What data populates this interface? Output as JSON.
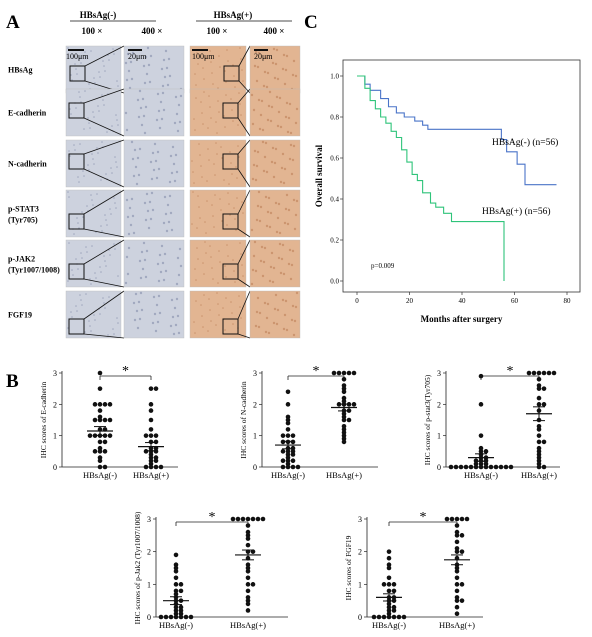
{
  "panel_labels": {
    "a": "A",
    "b": "B",
    "c": "C"
  },
  "histology": {
    "group_headers": [
      "HBsAg(-)",
      "HBsAg(+)"
    ],
    "magnifications": [
      "100 ×",
      "400 ×"
    ],
    "scale_labels": [
      "100μm",
      "20μm"
    ],
    "rows": [
      {
        "label_lines": [
          "HBsAg"
        ]
      },
      {
        "label_lines": [
          "E-cadherin"
        ]
      },
      {
        "label_lines": [
          "N-cadherin"
        ]
      },
      {
        "label_lines": [
          "p-STAT3",
          "(Tyr705)"
        ]
      },
      {
        "label_lines": [
          "p-JAK2",
          "(Tyr1007/1008)"
        ]
      },
      {
        "label_lines": [
          "FGF19"
        ]
      }
    ],
    "colors": {
      "negative_stain": "#cdd2de",
      "positive_stain": "#e2b592"
    }
  },
  "chart_data": [
    {
      "type": "line",
      "subtype": "kaplan-meier",
      "xlabel": "Months after surgery",
      "ylabel": "Overall survival",
      "xlim": [
        0,
        80
      ],
      "ylim": [
        0,
        1.0
      ],
      "x_ticks": [
        "0",
        "20",
        "40",
        "60",
        "80"
      ],
      "y_ticks": [
        "0.0",
        "0.2",
        "0.4",
        "0.6",
        "0.8",
        "1.0"
      ],
      "annotation": "p=0.009",
      "series": [
        {
          "name": "HBsAg(-) (n=56)",
          "color": "#4a74c8",
          "steps": [
            [
              0,
              1.0
            ],
            [
              3,
              0.96
            ],
            [
              5,
              0.93
            ],
            [
              9,
              0.89
            ],
            [
              12,
              0.85
            ],
            [
              15,
              0.82
            ],
            [
              18,
              0.8
            ],
            [
              22,
              0.78
            ],
            [
              25,
              0.76
            ],
            [
              27,
              0.74
            ],
            [
              55,
              0.69
            ],
            [
              57,
              0.63
            ],
            [
              61,
              0.57
            ],
            [
              64,
              0.47
            ],
            [
              76,
              0.47
            ]
          ]
        },
        {
          "name": "HBsAg(+) (n=56)",
          "color": "#2fc47a",
          "steps": [
            [
              0,
              1.0
            ],
            [
              3,
              0.94
            ],
            [
              5,
              0.88
            ],
            [
              7,
              0.84
            ],
            [
              9,
              0.8
            ],
            [
              11,
              0.77
            ],
            [
              13,
              0.73
            ],
            [
              15,
              0.7
            ],
            [
              17,
              0.64
            ],
            [
              19,
              0.58
            ],
            [
              21,
              0.52
            ],
            [
              23,
              0.49
            ],
            [
              25,
              0.43
            ],
            [
              28,
              0.38
            ],
            [
              30,
              0.36
            ],
            [
              33,
              0.33
            ],
            [
              36,
              0.29
            ],
            [
              55,
              0.29
            ],
            [
              56,
              0.0
            ]
          ]
        }
      ]
    },
    {
      "type": "scatter",
      "ylabel": "IHC scores of E-cadherin",
      "categories": [
        "HBsAg(-)",
        "HBsAg(+)"
      ],
      "ylim": [
        0,
        3
      ],
      "y_ticks": [
        "0",
        "1",
        "2",
        "3"
      ],
      "significance": "*",
      "series": [
        {
          "name": "HBsAg(-)",
          "mean": 1.15,
          "sem": 0.14,
          "values": [
            3.0,
            2.5,
            2.0,
            2.0,
            2.0,
            2.0,
            1.8,
            1.6,
            1.5,
            1.5,
            1.5,
            1.5,
            1.2,
            1.2,
            1.0,
            1.0,
            1.0,
            1.0,
            1.0,
            0.8,
            0.8,
            0.6,
            0.5,
            0.5,
            0.5,
            0.3,
            0.2,
            0.0,
            0.0
          ]
        },
        {
          "name": "HBsAg(+)",
          "mean": 0.65,
          "sem": 0.13,
          "values": [
            2.5,
            2.5,
            2.0,
            1.8,
            1.5,
            1.2,
            1.0,
            1.0,
            1.0,
            0.8,
            0.8,
            0.6,
            0.6,
            0.5,
            0.5,
            0.5,
            0.4,
            0.3,
            0.3,
            0.2,
            0.2,
            0.1,
            0.0,
            0.0,
            0.0,
            0.0
          ]
        }
      ]
    },
    {
      "type": "scatter",
      "ylabel": "IHC scores of N-cadherin",
      "categories": [
        "HBsAg(-)",
        "HBsAg(+)"
      ],
      "ylim": [
        0,
        3
      ],
      "y_ticks": [
        "0",
        "1",
        "2",
        "3"
      ],
      "significance": "*",
      "series": [
        {
          "name": "HBsAg(-)",
          "mean": 0.7,
          "sem": 0.12,
          "values": [
            2.4,
            2.0,
            1.6,
            1.5,
            1.4,
            1.2,
            1.0,
            1.0,
            1.0,
            0.8,
            0.8,
            0.8,
            0.6,
            0.6,
            0.5,
            0.5,
            0.5,
            0.4,
            0.4,
            0.3,
            0.2,
            0.2,
            0.2,
            0.1,
            0.0,
            0.0,
            0.0,
            0.0
          ]
        },
        {
          "name": "HBsAg(+)",
          "mean": 1.9,
          "sem": 0.11,
          "values": [
            3.0,
            3.0,
            3.0,
            3.0,
            3.0,
            2.8,
            2.6,
            2.5,
            2.4,
            2.2,
            2.1,
            2.0,
            2.0,
            2.0,
            2.0,
            1.8,
            1.8,
            1.7,
            1.6,
            1.5,
            1.5,
            1.3,
            1.2,
            1.1,
            1.0,
            0.9,
            0.8
          ]
        }
      ]
    },
    {
      "type": "scatter",
      "ylabel": "IHC scores of p-stat3(Tyr705)",
      "categories": [
        "HBsAg(-)",
        "HBsAg(+)"
      ],
      "ylim": [
        0,
        3
      ],
      "y_ticks": [
        "0",
        "1",
        "2",
        "3"
      ],
      "significance": "*",
      "series": [
        {
          "name": "HBsAg(-)",
          "mean": 0.3,
          "sem": 0.12,
          "values": [
            2.9,
            2.0,
            1.0,
            0.6,
            0.5,
            0.5,
            0.4,
            0.3,
            0.3,
            0.2,
            0.2,
            0.2,
            0.1,
            0.1,
            0.1,
            0.0,
            0.0,
            0.0,
            0.0,
            0.0,
            0.0,
            0.0,
            0.0,
            0.0,
            0.0,
            0.0,
            0.0,
            0.0
          ]
        },
        {
          "name": "HBsAg(+)",
          "mean": 1.7,
          "sem": 0.22,
          "values": [
            3.0,
            3.0,
            3.0,
            3.0,
            3.0,
            3.0,
            2.8,
            2.6,
            2.5,
            2.5,
            2.2,
            2.0,
            2.0,
            1.8,
            1.5,
            1.3,
            1.2,
            1.0,
            0.8,
            0.8,
            0.6,
            0.5,
            0.4,
            0.3,
            0.2,
            0.1,
            0.0,
            0.0
          ]
        }
      ]
    },
    {
      "type": "scatter",
      "ylabel": "IHC scores of p-Jak2 (Tyr1007/1008)",
      "categories": [
        "HBsAg(-)",
        "HBsAg(+)"
      ],
      "ylim": [
        0,
        3
      ],
      "y_ticks": [
        "0",
        "1",
        "2",
        "3"
      ],
      "significance": "*",
      "series": [
        {
          "name": "HBsAg(-)",
          "mean": 0.5,
          "sem": 0.12,
          "values": [
            1.9,
            1.6,
            1.5,
            1.4,
            1.2,
            1.0,
            1.0,
            0.8,
            0.8,
            0.7,
            0.6,
            0.5,
            0.5,
            0.4,
            0.3,
            0.3,
            0.2,
            0.2,
            0.1,
            0.1,
            0.0,
            0.0,
            0.0,
            0.0,
            0.0,
            0.0,
            0.0
          ]
        },
        {
          "name": "HBsAg(+)",
          "mean": 1.9,
          "sem": 0.15,
          "values": [
            3.0,
            3.0,
            3.0,
            3.0,
            3.0,
            3.0,
            3.0,
            2.8,
            2.6,
            2.5,
            2.4,
            2.2,
            2.0,
            2.0,
            1.8,
            1.6,
            1.5,
            1.4,
            1.2,
            1.0,
            1.0,
            0.8,
            0.6,
            0.5,
            0.4,
            0.2
          ]
        }
      ]
    },
    {
      "type": "scatter",
      "ylabel": "IHC scores of FGF19",
      "categories": [
        "HBsAg(-)",
        "HBsAg(+)"
      ],
      "ylim": [
        0,
        3
      ],
      "y_ticks": [
        "0",
        "1",
        "2",
        "3"
      ],
      "significance": "*",
      "series": [
        {
          "name": "HBsAg(-)",
          "mean": 0.6,
          "sem": 0.11,
          "values": [
            2.0,
            1.8,
            1.6,
            1.5,
            1.2,
            1.0,
            1.0,
            1.0,
            0.8,
            0.8,
            0.6,
            0.6,
            0.5,
            0.5,
            0.4,
            0.3,
            0.3,
            0.2,
            0.2,
            0.1,
            0.0,
            0.0,
            0.0,
            0.0,
            0.0,
            0.0,
            0.0
          ]
        },
        {
          "name": "HBsAg(+)",
          "mean": 1.75,
          "sem": 0.15,
          "values": [
            3.0,
            3.0,
            3.0,
            3.0,
            3.0,
            2.8,
            2.6,
            2.5,
            2.5,
            2.3,
            2.1,
            2.0,
            2.0,
            1.8,
            1.6,
            1.5,
            1.4,
            1.2,
            1.0,
            1.0,
            0.8,
            0.6,
            0.5,
            0.5,
            0.3,
            0.1
          ]
        }
      ]
    }
  ]
}
